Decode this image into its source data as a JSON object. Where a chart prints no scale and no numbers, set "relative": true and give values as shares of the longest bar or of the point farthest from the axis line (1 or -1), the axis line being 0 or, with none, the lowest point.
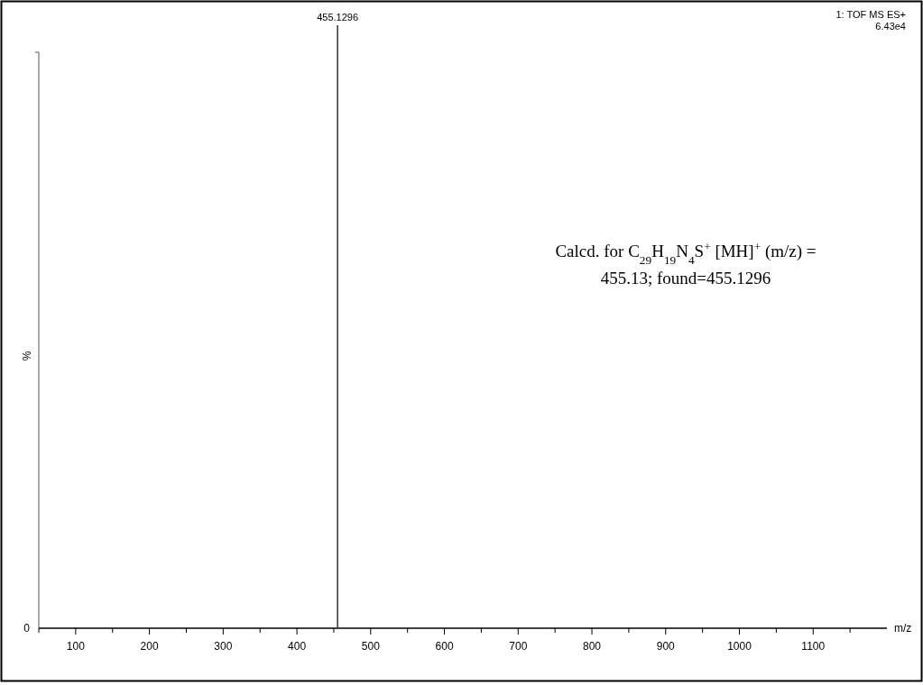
{
  "chart_data": {
    "type": "bar",
    "relative": true,
    "xlabel": "m/z",
    "ylabel": "%",
    "x": [
      455.1296
    ],
    "values": [
      1
    ],
    "color": "#333333",
    "xlim": [
      50,
      1200
    ],
    "xticks": [
      {
        "value": 50,
        "label": null
      },
      100,
      {
        "value": 150,
        "label": null
      },
      200,
      {
        "value": 250,
        "label": null
      },
      300,
      {
        "value": 350,
        "label": null
      },
      400,
      {
        "value": 450,
        "label": null
      },
      500,
      {
        "value": 550,
        "label": null
      },
      600,
      {
        "value": 650,
        "label": null
      },
      700,
      {
        "value": 750,
        "label": null
      },
      800,
      {
        "value": 850,
        "label": null
      },
      900,
      {
        "value": 950,
        "label": null
      },
      1000,
      {
        "value": 1050,
        "label": null
      },
      1100,
      {
        "value": 1150,
        "label": null
      }
    ],
    "annotations": [
      "455.1296",
      "0",
      "1: TOF MS ES+",
      "6.43e4",
      "Calcd. for C$_{29}$H$_{19}$N$_{4}$S$^{+}$ [MH]$^{+}$ (m/z) =",
      "455.13; found=455.1296"
    ]
  }
}
